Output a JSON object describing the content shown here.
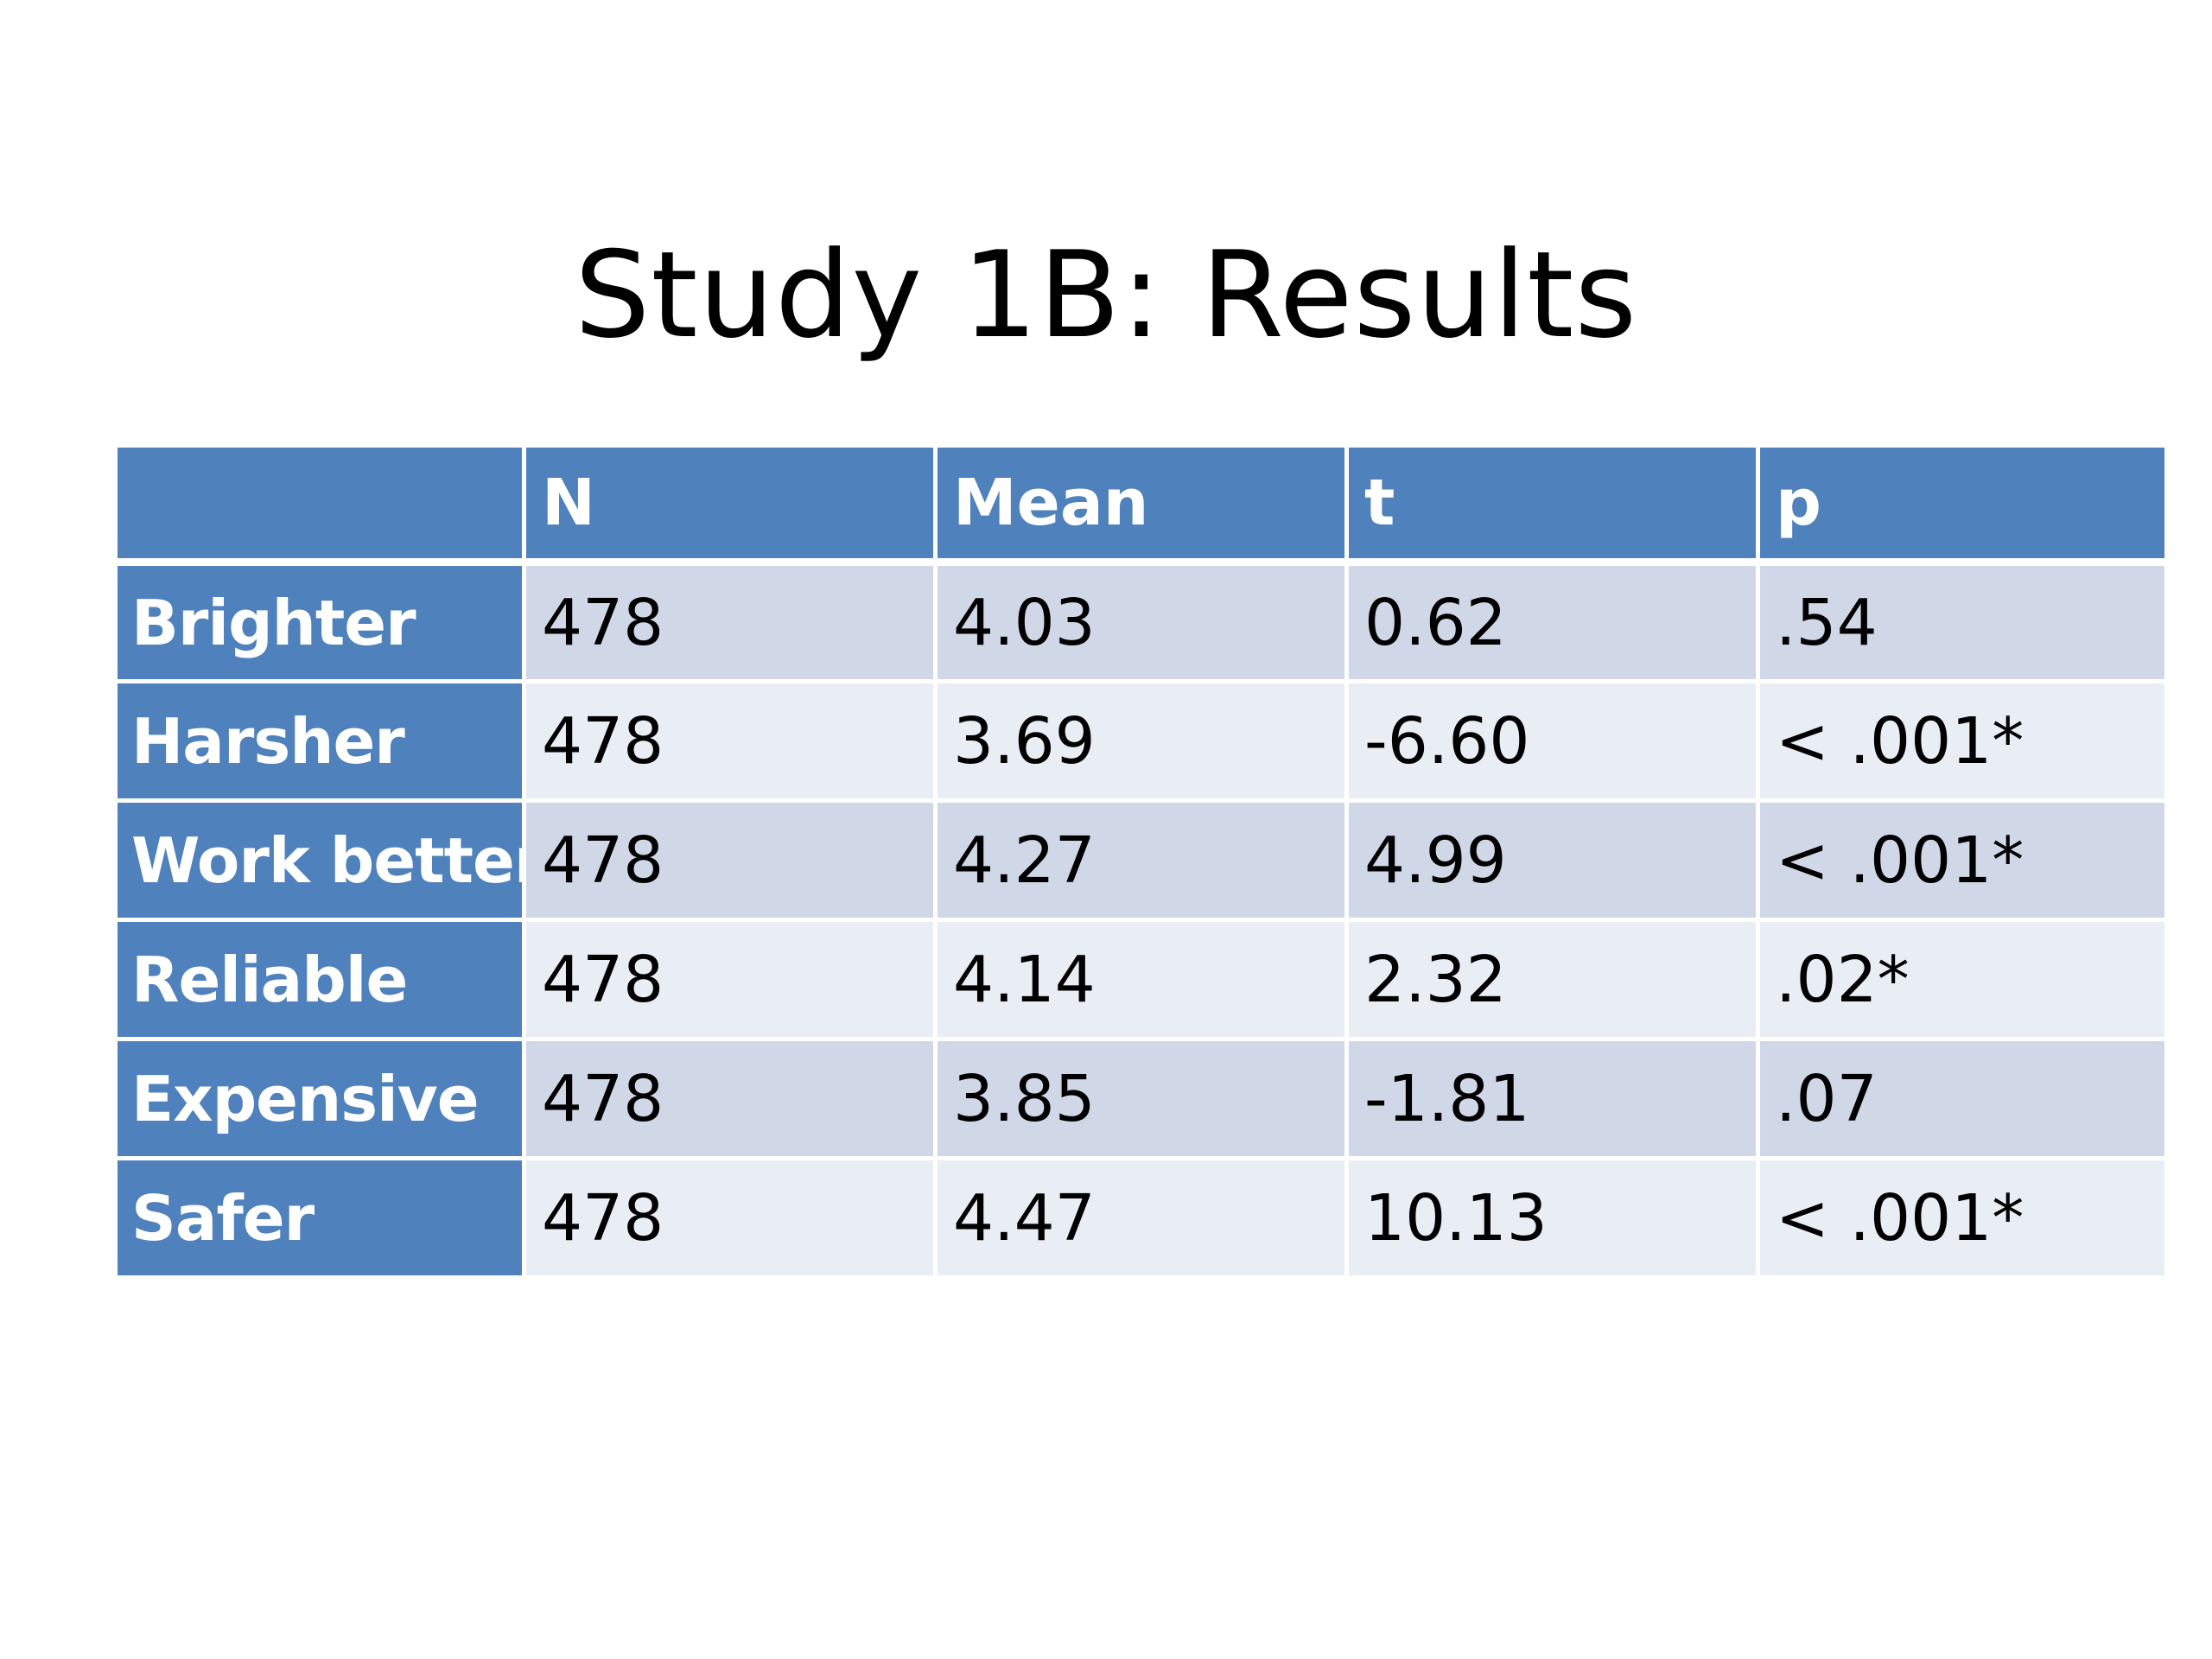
{
  "slide": {
    "title": "Study 1B: Results"
  },
  "table": {
    "headers": [
      "",
      "N",
      "Mean",
      "t",
      "p"
    ],
    "rows": [
      {
        "label": "Brighter",
        "n": "478",
        "mean": "4.03",
        "t": "0.62",
        "p": ".54"
      },
      {
        "label": "Harsher",
        "n": "478",
        "mean": "3.69",
        "t": "-6.60",
        "p": "< .001*"
      },
      {
        "label": "Work better",
        "n": "478",
        "mean": "4.27",
        "t": "4.99",
        "p": "< .001*"
      },
      {
        "label": "Reliable",
        "n": "478",
        "mean": "4.14",
        "t": "2.32",
        "p": ".02*"
      },
      {
        "label": "Expensive",
        "n": "478",
        "mean": "3.85",
        "t": "-1.81",
        "p": ".07"
      },
      {
        "label": "Safer",
        "n": "478",
        "mean": "4.47",
        "t": "10.13",
        "p": "< .001*"
      }
    ]
  },
  "colors": {
    "header_fill": "#4f81bd",
    "row_band_dark": "#d0d8e8",
    "row_band_light": "#e9edf4",
    "header_text": "#ffffff",
    "body_text": "#000000"
  }
}
